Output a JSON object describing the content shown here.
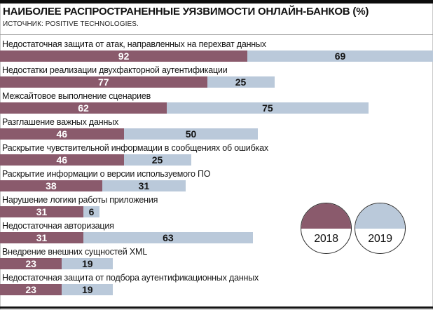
{
  "header": {
    "title": "НАИБОЛЕЕ РАСПРОСТРАНЕННЫЕ УЯЗВИМОСТИ ОНЛАЙН-БАНКОВ (%)",
    "source": "ИСТОЧНИК: POSITIVE TECHNOLOGIES."
  },
  "legend": [
    {
      "label": "2018",
      "color": "#8a5a6c"
    },
    {
      "label": "2019",
      "color": "#bac9da"
    }
  ],
  "chart_data": {
    "type": "bar",
    "orientation": "horizontal",
    "stacked_pairs": true,
    "title": "НАИБОЛЕЕ РАСПРОСТРАНЕННЫЕ УЯЗВИМОСТИ ОНЛАЙН-БАНКОВ (%)",
    "source": "ИСТОЧНИК: POSITIVE TECHNOLOGIES.",
    "xlim": [
      0,
      161
    ],
    "grid": false,
    "legend_position": "right-middle",
    "categories": [
      "Недостаточная защита от атак, направленных на перехват данных",
      "Недостатки реализации двухфакторной аутентификации",
      "Межсайтовое выполнение сценариев",
      "Разглашение важных данных",
      "Раскрытие чувствительной информации в сообщениях об ошибках",
      "Раскрытие информации о версии используемого ПО",
      "Нарушение логики работы приложения",
      "Недостаточная авторизация",
      "Внедрение внешних сущностей XML",
      "Недостаточная защита от подбора аутентификационных данных"
    ],
    "series": [
      {
        "name": "2018",
        "color": "#8a5a6c",
        "text_color": "#ffffff",
        "values": [
          92,
          77,
          62,
          46,
          46,
          38,
          31,
          31,
          23,
          23
        ]
      },
      {
        "name": "2019",
        "color": "#bac9da",
        "text_color": "#141414",
        "values": [
          69,
          25,
          75,
          50,
          25,
          31,
          6,
          63,
          19,
          19
        ]
      }
    ]
  }
}
